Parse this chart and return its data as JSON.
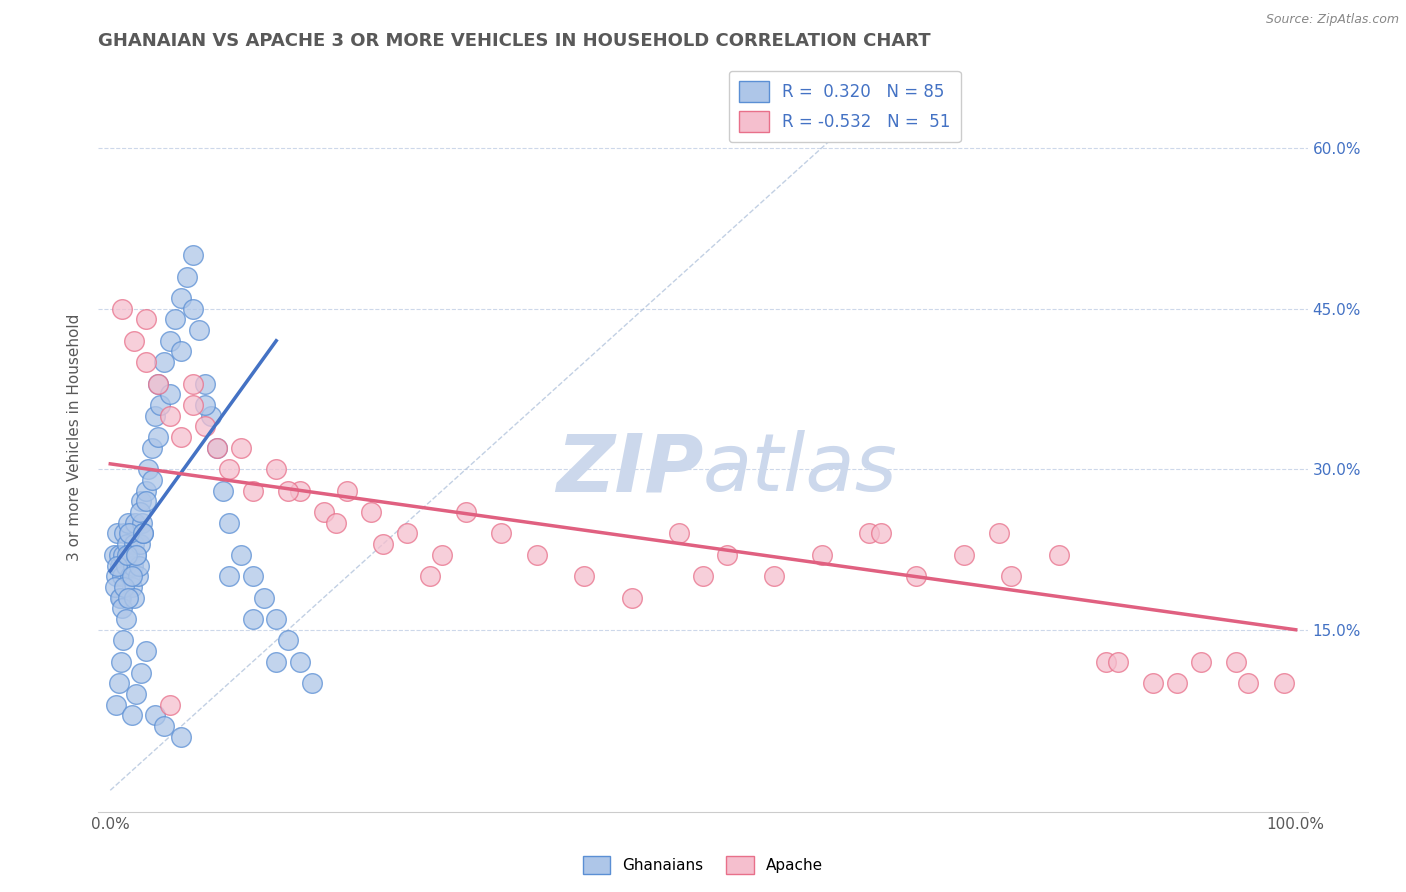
{
  "title": "GHANAIAN VS APACHE 3 OR MORE VEHICLES IN HOUSEHOLD CORRELATION CHART",
  "source_text": "Source: ZipAtlas.com",
  "ylabel": "3 or more Vehicles in Household",
  "xlim": [
    -1,
    101
  ],
  "ylim": [
    -2,
    68
  ],
  "x_ticks": [
    0,
    100
  ],
  "x_tick_labels": [
    "0.0%",
    "100.0%"
  ],
  "y_ticks_right": [
    15.0,
    30.0,
    45.0,
    60.0
  ],
  "y_tick_labels_right": [
    "15.0%",
    "30.0%",
    "45.0%",
    "60.0%"
  ],
  "legend_text_1": "R =  0.320   N = 85",
  "legend_text_2": "R = -0.532   N =  51",
  "color_blue_fill": "#aec6e8",
  "color_blue_edge": "#5b8fd4",
  "color_pink_fill": "#f5bfce",
  "color_pink_edge": "#e8708a",
  "color_blue_line": "#4472c4",
  "color_pink_line": "#e06080",
  "color_ref_line": "#a8bcd8",
  "color_legend_text": "#4472c4",
  "watermark_zip": "ZIP",
  "watermark_atlas": "atlas",
  "watermark_color": "#ccd8ec",
  "background_color": "#ffffff",
  "title_color": "#595959",
  "title_fontsize": 13,
  "grid_color": "#c8d4e8",
  "bottom_legend": [
    "Ghanaians",
    "Apache"
  ],
  "gh_x": [
    0.3,
    0.5,
    0.6,
    0.7,
    0.8,
    0.9,
    1.0,
    1.1,
    1.2,
    1.3,
    1.4,
    1.5,
    1.6,
    1.7,
    1.8,
    1.9,
    2.0,
    2.1,
    2.2,
    2.3,
    2.4,
    2.5,
    2.6,
    2.7,
    2.8,
    3.0,
    3.2,
    3.5,
    3.8,
    4.0,
    4.2,
    4.5,
    5.0,
    5.5,
    6.0,
    6.5,
    7.0,
    7.5,
    8.0,
    8.5,
    9.0,
    9.5,
    10.0,
    11.0,
    12.0,
    13.0,
    14.0,
    15.0,
    16.0,
    17.0,
    0.4,
    0.6,
    0.8,
    1.0,
    1.2,
    1.4,
    1.6,
    1.8,
    2.0,
    2.2,
    2.5,
    2.8,
    3.0,
    3.5,
    4.0,
    5.0,
    6.0,
    7.0,
    8.0,
    10.0,
    12.0,
    14.0,
    0.5,
    0.7,
    0.9,
    1.1,
    1.3,
    1.5,
    1.8,
    2.2,
    2.6,
    3.0,
    3.8,
    4.5,
    6.0
  ],
  "gh_y": [
    22.0,
    20.0,
    24.0,
    22.0,
    21.0,
    18.0,
    20.0,
    22.0,
    24.0,
    21.0,
    23.0,
    25.0,
    22.0,
    20.0,
    19.0,
    21.0,
    23.0,
    25.0,
    22.0,
    20.0,
    21.0,
    23.0,
    27.0,
    25.0,
    24.0,
    28.0,
    30.0,
    32.0,
    35.0,
    38.0,
    36.0,
    40.0,
    42.0,
    44.0,
    46.0,
    48.0,
    50.0,
    43.0,
    38.0,
    35.0,
    32.0,
    28.0,
    25.0,
    22.0,
    20.0,
    18.0,
    16.0,
    14.0,
    12.0,
    10.0,
    19.0,
    21.0,
    18.0,
    17.0,
    19.0,
    22.0,
    24.0,
    20.0,
    18.0,
    22.0,
    26.0,
    24.0,
    27.0,
    29.0,
    33.0,
    37.0,
    41.0,
    45.0,
    36.0,
    20.0,
    16.0,
    12.0,
    8.0,
    10.0,
    12.0,
    14.0,
    16.0,
    18.0,
    7.0,
    9.0,
    11.0,
    13.0,
    7.0,
    6.0,
    5.0
  ],
  "ap_x": [
    1.0,
    2.0,
    3.0,
    4.0,
    5.0,
    6.0,
    7.0,
    8.0,
    9.0,
    10.0,
    12.0,
    14.0,
    16.0,
    18.0,
    20.0,
    22.0,
    25.0,
    28.0,
    30.0,
    33.0,
    36.0,
    40.0,
    44.0,
    48.0,
    52.0,
    56.0,
    60.0,
    64.0,
    68.0,
    72.0,
    76.0,
    80.0,
    84.0,
    88.0,
    92.0,
    96.0,
    3.0,
    7.0,
    11.0,
    15.0,
    19.0,
    23.0,
    27.0,
    50.0,
    65.0,
    75.0,
    85.0,
    90.0,
    95.0,
    99.0,
    5.0
  ],
  "ap_y": [
    45.0,
    42.0,
    40.0,
    38.0,
    35.0,
    33.0,
    36.0,
    34.0,
    32.0,
    30.0,
    28.0,
    30.0,
    28.0,
    26.0,
    28.0,
    26.0,
    24.0,
    22.0,
    26.0,
    24.0,
    22.0,
    20.0,
    18.0,
    24.0,
    22.0,
    20.0,
    22.0,
    24.0,
    20.0,
    22.0,
    20.0,
    22.0,
    12.0,
    10.0,
    12.0,
    10.0,
    44.0,
    38.0,
    32.0,
    28.0,
    25.0,
    23.0,
    20.0,
    20.0,
    24.0,
    24.0,
    12.0,
    10.0,
    12.0,
    10.0,
    8.0
  ],
  "blue_line_x": [
    0,
    14
  ],
  "blue_line_y": [
    20.5,
    42.0
  ],
  "pink_line_x": [
    0,
    100
  ],
  "pink_line_y": [
    30.5,
    15.0
  ],
  "ref_line_x": [
    0,
    65
  ],
  "ref_line_y": [
    0,
    65
  ]
}
